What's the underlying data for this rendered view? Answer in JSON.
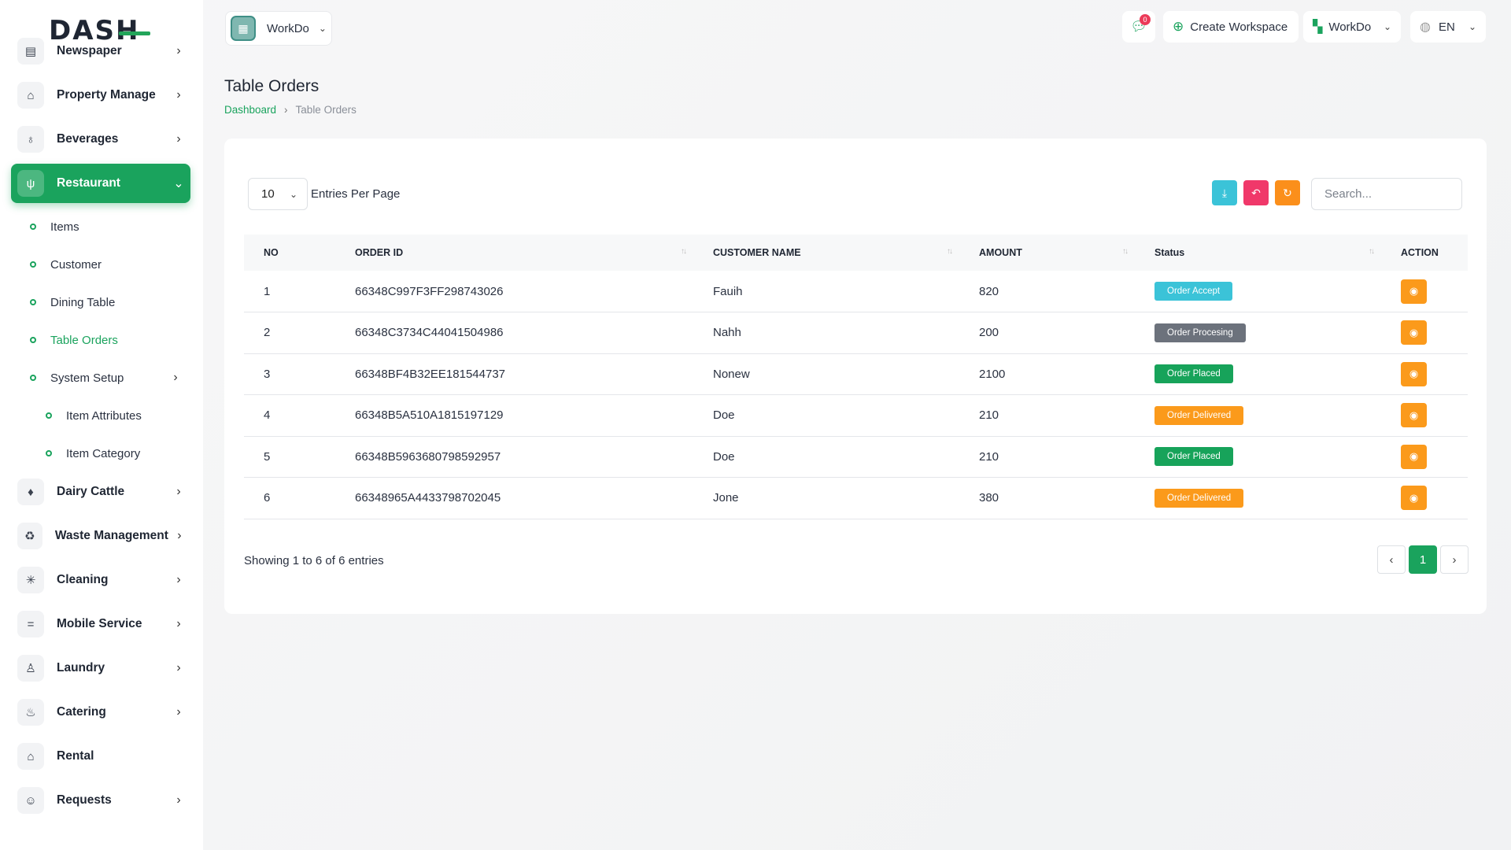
{
  "brand": {
    "logo_text": "DASH",
    "accent": "#1aa35d"
  },
  "sidebar": {
    "items": [
      {
        "label": "Newspaper",
        "icon": "newspaper-icon",
        "glyph": "▤",
        "chevron": "›"
      },
      {
        "label": "Property Manage",
        "icon": "building-icon",
        "glyph": "⌂",
        "chevron": "›"
      },
      {
        "label": "Beverages",
        "icon": "wine-glass-icon",
        "glyph": "♁",
        "chevron": "›"
      },
      {
        "label": "Restaurant",
        "icon": "fork-knife-icon",
        "glyph": "ψ",
        "chevron": "⌄",
        "active": true,
        "children": [
          {
            "label": "Items"
          },
          {
            "label": "Customer"
          },
          {
            "label": "Dining Table"
          },
          {
            "label": "Table Orders",
            "active": true
          },
          {
            "label": "System Setup",
            "chevron": "›",
            "children": [
              {
                "label": "Item Attributes"
              },
              {
                "label": "Item Category"
              }
            ]
          }
        ]
      },
      {
        "label": "Dairy Cattle",
        "icon": "milk-bottle-icon",
        "glyph": "♦",
        "chevron": "›"
      },
      {
        "label": "Waste Management",
        "icon": "trash-icon",
        "glyph": "♻",
        "chevron": "›"
      },
      {
        "label": "Cleaning",
        "icon": "sparkle-icon",
        "glyph": "✳",
        "chevron": "›"
      },
      {
        "label": "Mobile Service",
        "icon": "menu-lines-icon",
        "glyph": "=",
        "chevron": "›"
      },
      {
        "label": "Laundry",
        "icon": "shirt-icon",
        "glyph": "♙",
        "chevron": "›"
      },
      {
        "label": "Catering",
        "icon": "pot-icon",
        "glyph": "♨",
        "chevron": "›"
      },
      {
        "label": "Rental",
        "icon": "home-icon",
        "glyph": "⌂",
        "chevron": ""
      },
      {
        "label": "Requests",
        "icon": "user-plus-icon",
        "glyph": "☺",
        "chevron": "›"
      }
    ]
  },
  "header": {
    "workspace_name": "WorkDo",
    "message_count": "0",
    "create_workspace_label": "Create Workspace",
    "workspace_menu_label": "WorkDo",
    "language_label": "EN"
  },
  "page": {
    "title": "Table Orders",
    "breadcrumb": {
      "home": "Dashboard",
      "current": "Table Orders"
    }
  },
  "table_controls": {
    "entries_value": "10",
    "entries_label": "Entries Per Page",
    "search_placeholder": "Search..."
  },
  "table": {
    "columns": [
      "NO",
      "ORDER ID",
      "CUSTOMER NAME",
      "AMOUNT",
      "Status",
      "ACTION"
    ],
    "rows": [
      {
        "no": "1",
        "order_id": "66348C997F3FF298743026",
        "customer": "Fauih",
        "amount": "820",
        "status": "Order Accept",
        "status_color": "#3bc3d8"
      },
      {
        "no": "2",
        "order_id": "66348C3734C44041504986",
        "customer": "Nahh",
        "amount": "200",
        "status": "Order Procesing",
        "status_color": "#6c727c"
      },
      {
        "no": "3",
        "order_id": "66348BF4B32EE181544737",
        "customer": "Nonew",
        "amount": "2100",
        "status": "Order Placed",
        "status_color": "#17a35a"
      },
      {
        "no": "4",
        "order_id": "66348B5A510A1815197129",
        "customer": "Doe",
        "amount": "210",
        "status": "Order Delivered",
        "status_color": "#fb9a1b"
      },
      {
        "no": "5",
        "order_id": "66348B5963680798592957",
        "customer": "Doe",
        "amount": "210",
        "status": "Order Placed",
        "status_color": "#17a35a"
      },
      {
        "no": "6",
        "order_id": "66348965A4433798702045",
        "customer": "Jone",
        "amount": "380",
        "status": "Order Delivered",
        "status_color": "#fb9a1b"
      }
    ]
  },
  "footer": {
    "showing_text": "Showing 1 to 6 of 6 entries",
    "current_page": "1"
  }
}
